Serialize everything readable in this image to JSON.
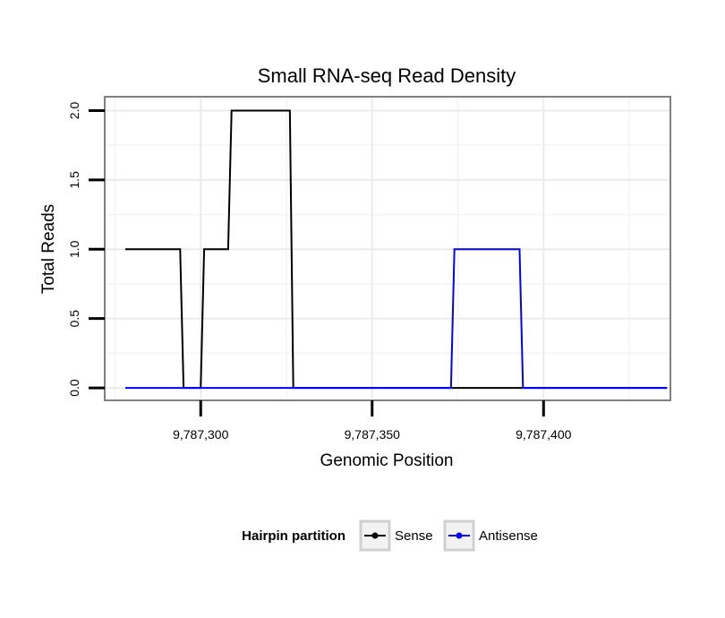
{
  "chart_data": {
    "type": "line",
    "title": "Small RNA-seq Read Density",
    "xlabel": "Genomic Position",
    "ylabel": "Total Reads",
    "xlim": [
      9787272,
      9787437
    ],
    "ylim": [
      -0.09,
      2.1
    ],
    "x_ticks": [
      9787300,
      9787350,
      9787400
    ],
    "x_tick_labels": [
      "9,787,300",
      "9,787,350",
      "9,787,400"
    ],
    "y_ticks": [
      0,
      0.5,
      1,
      1.5,
      2
    ],
    "y_tick_labels": [
      "0.0",
      "0.5",
      "1.0",
      "1.5",
      "2.0"
    ],
    "grid": true,
    "legend": {
      "title": "Hairpin partition",
      "position": "bottom",
      "entries": [
        "Sense",
        "Antisense"
      ]
    },
    "series": [
      {
        "name": "Sense",
        "color": "#000000",
        "x": [
          9787278,
          9787294,
          9787295,
          9787300,
          9787301,
          9787308,
          9787309,
          9787326,
          9787327,
          9787436
        ],
        "y": [
          1,
          1,
          0,
          0,
          1,
          1,
          2,
          2,
          0,
          0
        ]
      },
      {
        "name": "Antisense",
        "color": "#0000ff",
        "x": [
          9787278,
          9787373,
          9787374,
          9787393,
          9787394,
          9787436
        ],
        "y": [
          0,
          0,
          1,
          1,
          0,
          0
        ]
      }
    ]
  }
}
